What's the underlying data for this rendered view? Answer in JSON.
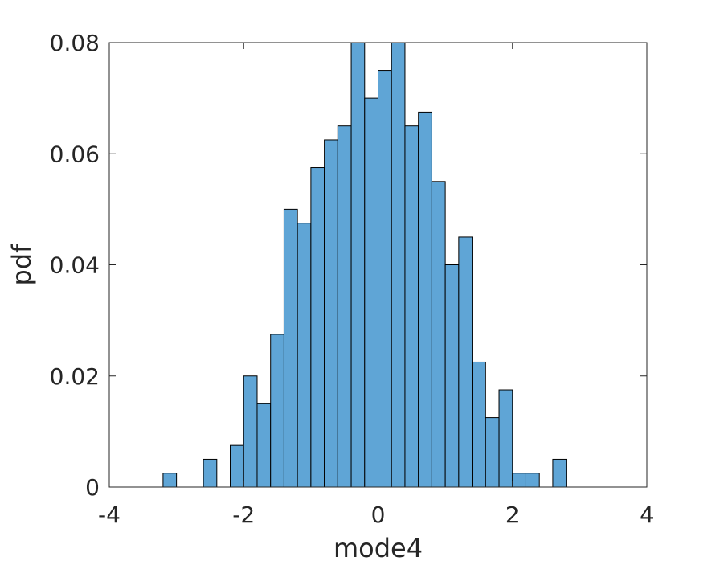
{
  "chart_data": {
    "type": "bar",
    "xlabel": "mode4",
    "ylabel": "pdf",
    "xlim": [
      -4,
      4
    ],
    "ylim": [
      0,
      0.08
    ],
    "xticks": [
      -4,
      -2,
      0,
      2,
      4
    ],
    "yticks": [
      0,
      0.02,
      0.04,
      0.06,
      0.08
    ],
    "xtick_labels": [
      "-4",
      "-2",
      "0",
      "2",
      "4"
    ],
    "ytick_labels": [
      "0",
      "0.02",
      "0.04",
      "0.06",
      "0.08"
    ],
    "bin_width": 0.2,
    "bin_edges_start": -4.0,
    "values": [
      0,
      0,
      0,
      0,
      0.0025,
      0,
      0,
      0.005,
      0,
      0.0075,
      0.02,
      0.015,
      0.0275,
      0.05,
      0.0475,
      0.0575,
      0.0625,
      0.065,
      0.08,
      0.07,
      0.075,
      0.08,
      0.065,
      0.0675,
      0.055,
      0.04,
      0.045,
      0.0225,
      0.0125,
      0.0175,
      0.0025,
      0.0025,
      0,
      0.005,
      0,
      0,
      0,
      0,
      0,
      0
    ],
    "bar_color": "#5fa5d6",
    "edge_color": "#000000",
    "grid": false
  }
}
